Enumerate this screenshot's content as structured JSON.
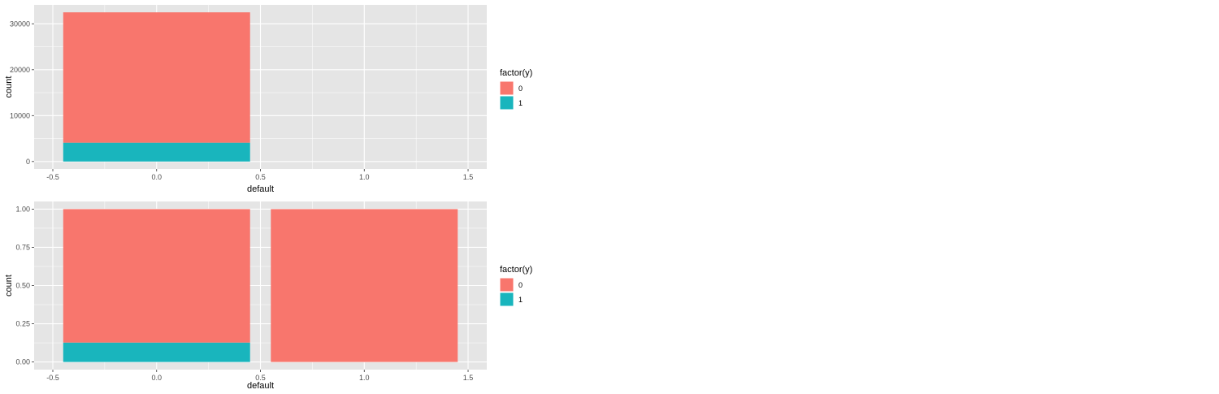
{
  "colors": {
    "panel_background": "#e5e5e5",
    "grid": "#ffffff",
    "tick": "#333333",
    "series_0": "#f8766d",
    "series_1": "#19b5bd"
  },
  "chart_data": [
    {
      "type": "bar",
      "position": "stack",
      "xlabel": "default",
      "ylabel": "count",
      "xlim": [
        -0.5,
        1.5
      ],
      "ylim": [
        0,
        32500
      ],
      "xticks": [
        -0.5,
        0.0,
        0.5,
        1.0,
        1.5
      ],
      "xtick_labels": [
        "-0.5",
        "0.0",
        "0.5",
        "1.0",
        "1.5"
      ],
      "yticks": [
        0,
        10000,
        20000,
        30000
      ],
      "ytick_labels": [
        "0",
        "10000",
        "20000",
        "30000"
      ],
      "grid": true,
      "bars": [
        {
          "x": 0,
          "width": 0.9,
          "segments": [
            {
              "series": "1",
              "value": 4100
            },
            {
              "series": "0",
              "value": 28400
            }
          ]
        }
      ],
      "legend": {
        "title": "factor(y)",
        "entries": [
          "0",
          "1"
        ],
        "placement": "right"
      }
    },
    {
      "type": "bar",
      "position": "fill",
      "xlabel": "default",
      "ylabel": "count",
      "xlim": [
        -0.5,
        1.5
      ],
      "ylim": [
        0,
        1
      ],
      "xticks": [
        -0.5,
        0.0,
        0.5,
        1.0,
        1.5
      ],
      "xtick_labels": [
        "-0.5",
        "0.0",
        "0.5",
        "1.0",
        "1.5"
      ],
      "yticks": [
        0,
        0.25,
        0.5,
        0.75,
        1.0
      ],
      "ytick_labels": [
        "0.00",
        "0.25",
        "0.50",
        "0.75",
        "1.00"
      ],
      "grid": true,
      "bars": [
        {
          "x": 0,
          "width": 0.9,
          "segments": [
            {
              "series": "1",
              "value": 0.127
            },
            {
              "series": "0",
              "value": 0.873
            }
          ]
        },
        {
          "x": 1,
          "width": 0.9,
          "segments": [
            {
              "series": "1",
              "value": 0.0
            },
            {
              "series": "0",
              "value": 1.0
            }
          ]
        }
      ],
      "legend": {
        "title": "factor(y)",
        "entries": [
          "0",
          "1"
        ],
        "placement": "right"
      }
    }
  ]
}
